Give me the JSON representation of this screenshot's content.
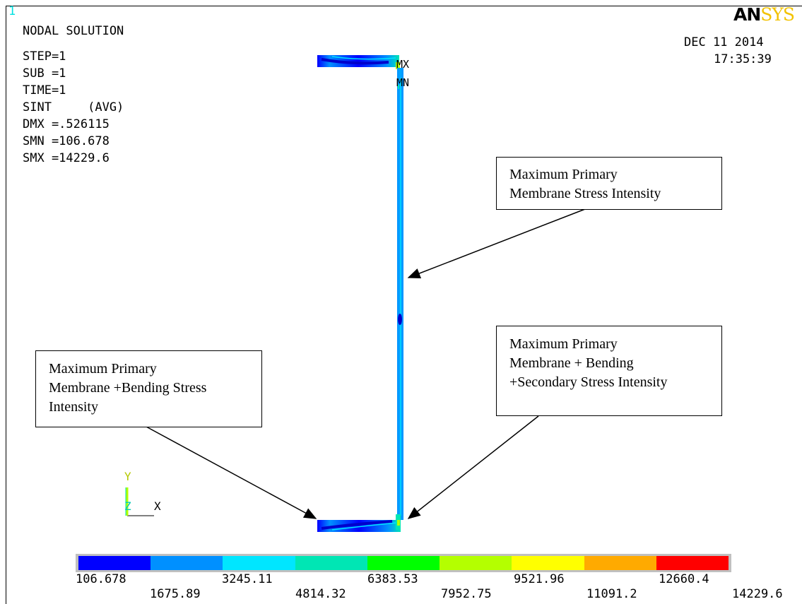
{
  "window_number": "1",
  "title": "NODAL SOLUTION",
  "info": {
    "step": "STEP=1",
    "sub": "SUB =1",
    "time": "TIME=1",
    "sint": "SINT     (AVG)",
    "dmx": "DMX =.526115",
    "smn": "SMN =106.678",
    "smx": "SMX =14229.6"
  },
  "date": "DEC 11 2014",
  "time_of_day": "17:35:39",
  "logo": {
    "an": "AN",
    "sys": "SYS"
  },
  "markers": {
    "max": "MX",
    "min": "MN"
  },
  "triad": {
    "y": "Y",
    "z": "Z",
    "x": "X"
  },
  "callouts": {
    "membrane": [
      "Maximum Primary",
      "Membrane Stress Intensity"
    ],
    "membrane_bending": [
      "Maximum Primary",
      "Membrane +Bending Stress",
      "Intensity"
    ],
    "secondary": [
      "Maximum Primary",
      "Membrane + Bending",
      "+Secondary Stress Intensity"
    ]
  },
  "legend": {
    "colors": [
      "#0000ff",
      "#0090ff",
      "#00e6ff",
      "#00e6b4",
      "#00ff00",
      "#b4ff00",
      "#ffff00",
      "#ffaa00",
      "#ff0000"
    ],
    "labels_top": [
      "106.678",
      "3245.11",
      "6383.53",
      "9521.96",
      "12660.4"
    ],
    "labels_bottom": [
      "1675.89",
      "4814.32",
      "7952.75",
      "11091.2",
      "14229.6"
    ]
  }
}
